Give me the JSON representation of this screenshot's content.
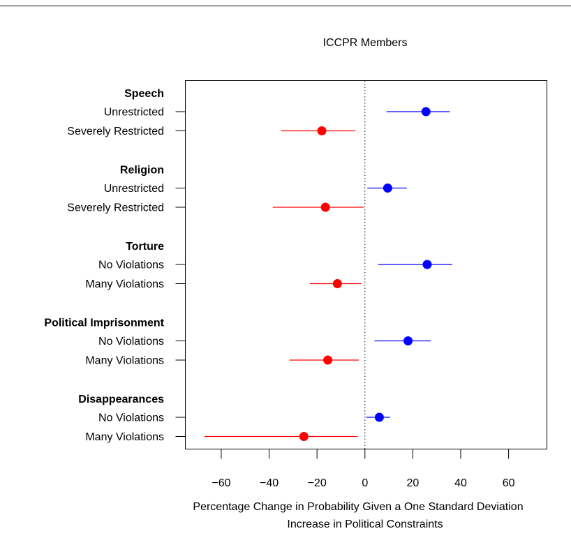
{
  "chart_data": {
    "type": "dot-interval",
    "title": "ICCPR Members",
    "xlabel_lines": [
      "Percentage Change in Probability Given a One Standard Deviation",
      "Increase in Political Constraints"
    ],
    "xlim": [
      -75,
      76
    ],
    "xticks": [
      -60,
      -40,
      -20,
      0,
      20,
      40,
      60
    ],
    "xtick_labels": [
      "−60",
      "−40",
      "−20",
      "0",
      "20",
      "40",
      "60"
    ],
    "reference_line": 0,
    "colors": {
      "positive": "#0000ff",
      "negative": "#ff0000"
    },
    "groups": [
      {
        "name": "Speech",
        "rows": [
          {
            "label": "Unrestricted",
            "estimate": 25.5,
            "lower": 9,
            "upper": 35.5,
            "color": "positive"
          },
          {
            "label": "Severely Restricted",
            "estimate": -18,
            "lower": -35,
            "upper": -4,
            "color": "negative"
          }
        ]
      },
      {
        "name": "Religion",
        "rows": [
          {
            "label": "Unrestricted",
            "estimate": 9.5,
            "lower": 1,
            "upper": 17.5,
            "color": "positive"
          },
          {
            "label": "Severely Restricted",
            "estimate": -16.5,
            "lower": -38.5,
            "upper": -0.5,
            "color": "negative"
          }
        ]
      },
      {
        "name": "Torture",
        "rows": [
          {
            "label": "No Violations",
            "estimate": 26,
            "lower": 5.5,
            "upper": 36.5,
            "color": "positive"
          },
          {
            "label": "Many Violations",
            "estimate": -11.5,
            "lower": -23,
            "upper": -1.5,
            "color": "negative"
          }
        ]
      },
      {
        "name": "Political Imprisonment",
        "rows": [
          {
            "label": "No Violations",
            "estimate": 18,
            "lower": 4,
            "upper": 27.5,
            "color": "positive"
          },
          {
            "label": "Many Violations",
            "estimate": -15.5,
            "lower": -31.5,
            "upper": -2.5,
            "color": "negative"
          }
        ]
      },
      {
        "name": "Disappearances",
        "rows": [
          {
            "label": "No Violations",
            "estimate": 6,
            "lower": 0.5,
            "upper": 10.5,
            "color": "positive"
          },
          {
            "label": "Many Violations",
            "estimate": -25.5,
            "lower": -67,
            "upper": -3,
            "color": "negative"
          }
        ]
      }
    ]
  }
}
